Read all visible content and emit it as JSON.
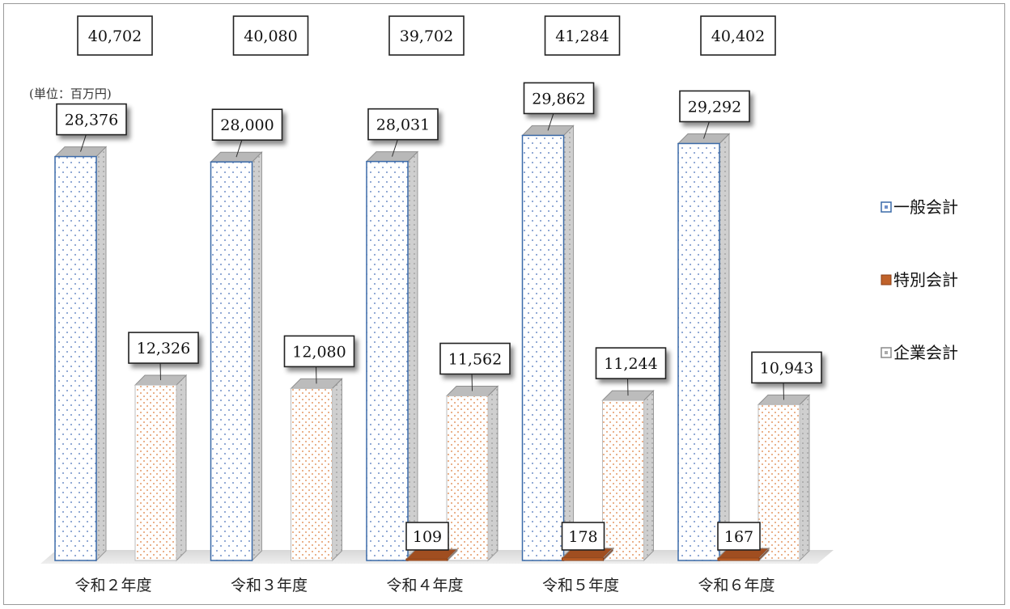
{
  "chart_data": {
    "type": "bar",
    "unit_label": "(単位：百万円)",
    "categories": [
      "令和２年度",
      "令和３年度",
      "令和４年度",
      "令和５年度",
      "令和６年度"
    ],
    "totals": [
      "40,702",
      "40,080",
      "39,702",
      "41,284",
      "40,402"
    ],
    "series": [
      {
        "name": "一般会計",
        "values": [
          28376,
          28000,
          28031,
          29862,
          29292
        ],
        "labels": [
          "28,376",
          "28,000",
          "28,031",
          "29,862",
          "29,292"
        ],
        "color": "#4a7bbf"
      },
      {
        "name": "特別会計",
        "values": [
          0,
          0,
          109,
          178,
          167
        ],
        "labels": [
          "",
          "",
          "109",
          "178",
          "167"
        ],
        "color": "#c0622a"
      },
      {
        "name": "企業会計",
        "values": [
          12326,
          12080,
          11562,
          11244,
          10943
        ],
        "labels": [
          "12,326",
          "12,080",
          "11,562",
          "11,244",
          "10,943"
        ],
        "color": "#e0a070"
      }
    ],
    "legend_position": "right",
    "grid": false
  }
}
